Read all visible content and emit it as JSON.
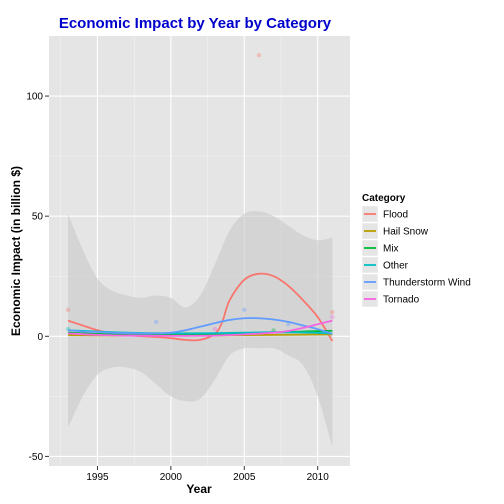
{
  "chart_data": {
    "type": "line",
    "title": "Economic Impact by Year by Category",
    "xlabel": "Year",
    "ylabel": "Economic Impact (in billion $)",
    "xlim": [
      1991.7,
      2012.2
    ],
    "ylim": [
      -54,
      125
    ],
    "x_ticks": [
      1995,
      2000,
      2005,
      2010
    ],
    "y_ticks": [
      -50,
      0,
      50,
      100
    ],
    "grid": true,
    "legend": {
      "title": "Category",
      "position": "right"
    },
    "colors": {
      "title": "#0000CC",
      "panel": "#E5E5E5",
      "grid": "#FFFFFF",
      "band": "#C8C8C8"
    },
    "confidence_band": {
      "x": [
        1993,
        1994,
        1995,
        1996,
        1997,
        1998,
        1999,
        2000,
        2001,
        2002,
        2003,
        2004,
        2005,
        2006,
        2007,
        2008,
        2009,
        2010,
        2011
      ],
      "upper": [
        51,
        36,
        24,
        19,
        17,
        16,
        17,
        16,
        12,
        17,
        30,
        44,
        51,
        52,
        50,
        46,
        42,
        40,
        41
      ],
      "lower": [
        -38,
        -25,
        -16,
        -13,
        -13,
        -15,
        -20,
        -25,
        -27,
        -26,
        -18,
        -8,
        -5,
        -5,
        -5,
        -8,
        -12,
        -25,
        -46
      ]
    },
    "series": [
      {
        "name": "Flood",
        "color": "#F8766D",
        "x": [
          1993,
          1994,
          1995,
          1996,
          1997,
          1998,
          1999,
          2000,
          2001,
          2002,
          2003,
          2003.5,
          2004,
          2005,
          2006,
          2007,
          2008,
          2009,
          2010,
          2011
        ],
        "y": [
          6.5,
          4.5,
          2.5,
          1.2,
          0.5,
          0,
          -0.3,
          -0.8,
          -1.5,
          -1.5,
          1,
          6,
          15,
          23.5,
          26,
          25,
          21,
          15,
          8,
          -2
        ]
      },
      {
        "name": "Hail Snow",
        "color": "#B79F00",
        "x": [
          1993,
          1995,
          1997,
          1999,
          2001,
          2003,
          2005,
          2007,
          2009,
          2011
        ],
        "y": [
          0.5,
          0.4,
          0.3,
          0.3,
          0.3,
          0.4,
          0.5,
          0.6,
          0.7,
          0.8
        ]
      },
      {
        "name": "Mix",
        "color": "#00BA38",
        "x": [
          1993,
          1995,
          1997,
          1999,
          2001,
          2003,
          2005,
          2007,
          2009,
          2011
        ],
        "y": [
          1.5,
          1,
          0.7,
          0.6,
          0.6,
          0.8,
          1.2,
          1.6,
          2,
          2.3
        ]
      },
      {
        "name": "Other",
        "color": "#00BFC4",
        "x": [
          1993,
          1995,
          1997,
          1999,
          2001,
          2003,
          2005,
          2007,
          2009,
          2011
        ],
        "y": [
          2.5,
          2,
          1.5,
          1.3,
          1.2,
          1.3,
          1.5,
          1.7,
          1.6,
          1.2
        ]
      },
      {
        "name": "Thunderstorm Wind",
        "color": "#619CFF",
        "x": [
          1993,
          1994,
          1995,
          1996,
          1997,
          1998,
          1999,
          2000,
          2001,
          2002,
          2003,
          2004,
          2005,
          2006,
          2007,
          2008,
          2009,
          2010,
          2011
        ],
        "y": [
          2.5,
          2,
          1.8,
          1.5,
          1.3,
          1.2,
          1.2,
          1.5,
          2.5,
          4,
          5.5,
          6.8,
          7.5,
          7.5,
          7,
          6,
          4.5,
          3,
          1
        ]
      },
      {
        "name": "Tornado",
        "color": "#F564E3",
        "x": [
          1993,
          1995,
          1997,
          1999,
          2001,
          2003,
          2005,
          2007,
          2008,
          2009,
          2010,
          2011
        ],
        "y": [
          1.2,
          0.6,
          0.3,
          0.2,
          0.2,
          0.3,
          0.8,
          1.5,
          2.2,
          3.5,
          5,
          6.5
        ]
      }
    ],
    "points": [
      {
        "series": "Flood",
        "x": 1993,
        "y": 11
      },
      {
        "series": "Flood",
        "x": 1994,
        "y": 1
      },
      {
        "series": "Flood",
        "x": 2006,
        "y": 117
      },
      {
        "series": "Flood",
        "x": 2011,
        "y": 10
      },
      {
        "series": "Thunderstorm Wind",
        "x": 1999,
        "y": 6
      },
      {
        "series": "Thunderstorm Wind",
        "x": 2005,
        "y": 11
      },
      {
        "series": "Thunderstorm Wind",
        "x": 2008,
        "y": 5
      },
      {
        "series": "Tornado",
        "x": 2011,
        "y": 8
      },
      {
        "series": "Tornado",
        "x": 2003,
        "y": 3
      },
      {
        "series": "Mix",
        "x": 2007,
        "y": 2.5
      },
      {
        "series": "Other",
        "x": 1993,
        "y": 3
      },
      {
        "series": "Hail Snow",
        "x": 2001,
        "y": 1
      }
    ]
  }
}
